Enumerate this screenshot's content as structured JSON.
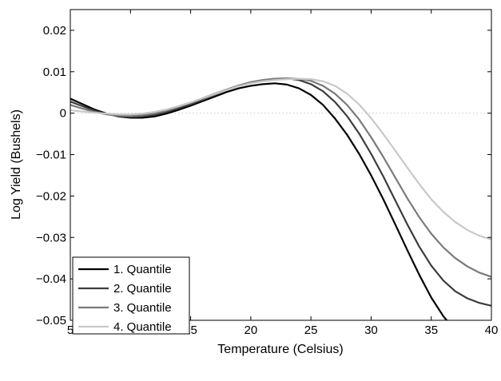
{
  "chart_data": {
    "type": "line",
    "title": "",
    "xlabel": "Temperature (Celsius)",
    "ylabel": "Log Yield (Bushels)",
    "xlim": [
      5,
      40
    ],
    "ylim": [
      -0.05,
      0.025
    ],
    "xticks": [
      5,
      10,
      15,
      20,
      25,
      30,
      35,
      40
    ],
    "xtick_labels": [
      "5",
      "10",
      "15",
      "20",
      "25",
      "30",
      "35",
      "40"
    ],
    "yticks": [
      -0.05,
      -0.04,
      -0.03,
      -0.02,
      -0.01,
      0,
      0.01,
      0.02
    ],
    "ytick_labels": [
      "−0.05",
      "−0.04",
      "−0.03",
      "−0.02",
      "−0.01",
      "0",
      "0.01",
      "0.02"
    ],
    "grid": false,
    "reference_line": {
      "y": 0,
      "style": "dotted",
      "color": "#cccccc"
    },
    "legend_position": "bottom-left",
    "series": [
      {
        "name": "1. Quantile",
        "color": "#000000",
        "points": [
          [
            5,
            0.0035
          ],
          [
            6,
            0.0022
          ],
          [
            7,
            0.0009
          ],
          [
            8,
            -0.0001
          ],
          [
            9,
            -0.0008
          ],
          [
            10,
            -0.0011
          ],
          [
            11,
            -0.0011
          ],
          [
            12,
            -0.0008
          ],
          [
            13,
            -0.0001
          ],
          [
            14,
            0.0008
          ],
          [
            15,
            0.0018
          ],
          [
            16,
            0.0029
          ],
          [
            17,
            0.004
          ],
          [
            18,
            0.0051
          ],
          [
            19,
            0.006
          ],
          [
            20,
            0.0066
          ],
          [
            21,
            0.007
          ],
          [
            22,
            0.0072
          ],
          [
            23,
            0.0069
          ],
          [
            24,
            0.006
          ],
          [
            25,
            0.0044
          ],
          [
            26,
            0.002
          ],
          [
            27,
            -0.0013
          ],
          [
            28,
            -0.0052
          ],
          [
            29,
            -0.0098
          ],
          [
            30,
            -0.015
          ],
          [
            31,
            -0.0207
          ],
          [
            32,
            -0.0268
          ],
          [
            33,
            -0.033
          ],
          [
            34,
            -0.039
          ],
          [
            35,
            -0.0445
          ],
          [
            36,
            -0.049
          ],
          [
            37,
            -0.0525
          ],
          [
            38,
            -0.055
          ]
        ]
      },
      {
        "name": "2. Quantile",
        "color": "#3c3c3c",
        "points": [
          [
            5,
            0.0028
          ],
          [
            6,
            0.0017
          ],
          [
            7,
            0.0006
          ],
          [
            8,
            -0.0002
          ],
          [
            9,
            -0.0007
          ],
          [
            10,
            -0.0009
          ],
          [
            11,
            -0.0008
          ],
          [
            12,
            -0.0004
          ],
          [
            13,
            0.0003
          ],
          [
            14,
            0.0012
          ],
          [
            15,
            0.0023
          ],
          [
            16,
            0.0034
          ],
          [
            17,
            0.0045
          ],
          [
            18,
            0.0056
          ],
          [
            19,
            0.0066
          ],
          [
            20,
            0.0074
          ],
          [
            21,
            0.008
          ],
          [
            22,
            0.0083
          ],
          [
            23,
            0.0084
          ],
          [
            24,
            0.008
          ],
          [
            25,
            0.007
          ],
          [
            26,
            0.0053
          ],
          [
            27,
            0.0027
          ],
          [
            28,
            -0.0007
          ],
          [
            29,
            -0.0049
          ],
          [
            30,
            -0.0098
          ],
          [
            31,
            -0.0152
          ],
          [
            32,
            -0.021
          ],
          [
            33,
            -0.0268
          ],
          [
            34,
            -0.0322
          ],
          [
            35,
            -0.0368
          ],
          [
            36,
            -0.0404
          ],
          [
            37,
            -0.043
          ],
          [
            38,
            -0.0447
          ],
          [
            39,
            -0.0458
          ],
          [
            40,
            -0.0465
          ]
        ]
      },
      {
        "name": "3. Quantile",
        "color": "#7a7a7a",
        "points": [
          [
            5,
            0.002
          ],
          [
            6,
            0.0011
          ],
          [
            7,
            0.0003
          ],
          [
            8,
            -0.0003
          ],
          [
            9,
            -0.0006
          ],
          [
            10,
            -0.0007
          ],
          [
            11,
            -0.0005
          ],
          [
            12,
            -0.0001
          ],
          [
            13,
            0.0006
          ],
          [
            14,
            0.0015
          ],
          [
            15,
            0.0025
          ],
          [
            16,
            0.0036
          ],
          [
            17,
            0.0047
          ],
          [
            18,
            0.0057
          ],
          [
            19,
            0.0067
          ],
          [
            20,
            0.0075
          ],
          [
            21,
            0.008
          ],
          [
            22,
            0.0083
          ],
          [
            23,
            0.0084
          ],
          [
            24,
            0.0083
          ],
          [
            25,
            0.0078
          ],
          [
            26,
            0.0066
          ],
          [
            27,
            0.0047
          ],
          [
            28,
            0.002
          ],
          [
            29,
            -0.0015
          ],
          [
            30,
            -0.0058
          ],
          [
            31,
            -0.0105
          ],
          [
            32,
            -0.0155
          ],
          [
            33,
            -0.0205
          ],
          [
            34,
            -0.0251
          ],
          [
            35,
            -0.0291
          ],
          [
            36,
            -0.0324
          ],
          [
            37,
            -0.035
          ],
          [
            38,
            -0.037
          ],
          [
            39,
            -0.0385
          ],
          [
            40,
            -0.0395
          ]
        ]
      },
      {
        "name": "4. Quantile",
        "color": "#c8c8c8",
        "points": [
          [
            5,
            0.0007
          ],
          [
            6,
            0.0004
          ],
          [
            7,
            0.0001
          ],
          [
            8,
            -0.0001
          ],
          [
            9,
            -0.0003
          ],
          [
            10,
            -0.0003
          ],
          [
            11,
            -0.0001
          ],
          [
            12,
            0.0003
          ],
          [
            13,
            0.0009
          ],
          [
            14,
            0.0017
          ],
          [
            15,
            0.0026
          ],
          [
            16,
            0.0036
          ],
          [
            17,
            0.0046
          ],
          [
            18,
            0.0056
          ],
          [
            19,
            0.0065
          ],
          [
            20,
            0.0072
          ],
          [
            21,
            0.0077
          ],
          [
            22,
            0.008
          ],
          [
            23,
            0.0082
          ],
          [
            24,
            0.0083
          ],
          [
            25,
            0.0082
          ],
          [
            26,
            0.0077
          ],
          [
            27,
            0.0066
          ],
          [
            28,
            0.0047
          ],
          [
            29,
            0.0021
          ],
          [
            30,
            -0.0012
          ],
          [
            31,
            -0.005
          ],
          [
            32,
            -0.009
          ],
          [
            33,
            -0.0131
          ],
          [
            34,
            -0.0171
          ],
          [
            35,
            -0.0208
          ],
          [
            36,
            -0.0238
          ],
          [
            37,
            -0.0263
          ],
          [
            38,
            -0.0282
          ],
          [
            39,
            -0.0296
          ],
          [
            40,
            -0.0305
          ]
        ]
      }
    ]
  }
}
